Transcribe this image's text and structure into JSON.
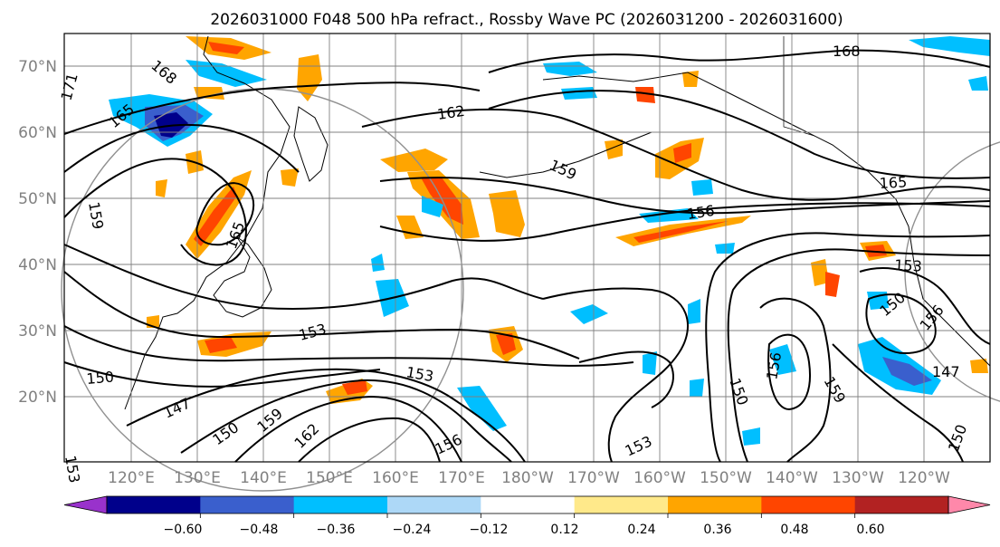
{
  "figure": {
    "title": "2026031000 F048 500 hPa refract., Rossby Wave PC (2026031200 - 2026031600)"
  },
  "map": {
    "lat_labels": [
      "70°N",
      "60°N",
      "50°N",
      "40°N",
      "30°N",
      "20°N"
    ],
    "lon_labels": [
      "120°E",
      "130°E",
      "140°E",
      "150°E",
      "160°E",
      "170°E",
      "180°W",
      "170°W",
      "160°W",
      "150°W",
      "140°W",
      "130°W",
      "120°W"
    ],
    "gridline_color": "#808080",
    "contour_color": "#000000",
    "contour_labels": [
      "168",
      "165",
      "171",
      "162",
      "159",
      "159",
      "165",
      "156",
      "165",
      "153",
      "150",
      "156",
      "153",
      "150",
      "153",
      "147",
      "150",
      "159",
      "162",
      "156",
      "153",
      "150",
      "156",
      "159",
      "147",
      "150",
      "153",
      "168"
    ]
  },
  "colorbar": {
    "ticks": [
      "−0.60",
      "−0.48",
      "−0.36",
      "−0.24",
      "−0.12",
      "0.12",
      "0.24",
      "0.36",
      "0.48",
      "0.60"
    ],
    "colors": [
      "#9932cc",
      "#00008b",
      "#3a5fcd",
      "#00bfff",
      "#add8f7",
      "#ffffff",
      "#ffe98a",
      "#ffa500",
      "#ff4500",
      "#b22222",
      "#ff88aa"
    ]
  }
}
